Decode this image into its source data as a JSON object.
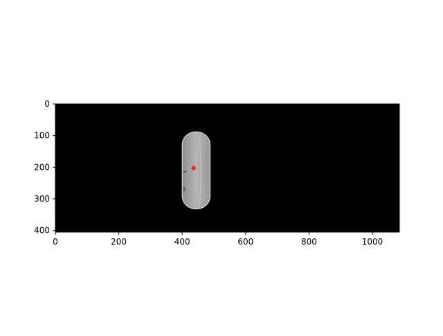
{
  "chart_data": {
    "type": "image",
    "image_extent": {
      "x": [
        0,
        1085
      ],
      "y": [
        405,
        0
      ]
    },
    "xlim": [
      0,
      1085
    ],
    "ylim": [
      405,
      0
    ],
    "y_inverted": true,
    "xticks": [
      0,
      200,
      400,
      600,
      800,
      1000
    ],
    "yticks": [
      0,
      100,
      200,
      300,
      400
    ],
    "xtick_labels": [
      "0",
      "200",
      "400",
      "600",
      "800",
      "1000"
    ],
    "ytick_labels": [
      "0",
      "100",
      "200",
      "300",
      "400"
    ],
    "background_color": "#000000",
    "object": {
      "shape": "rounded-capsule",
      "color": "#a8a8a8",
      "edge_color": "#d6d6d6",
      "x_range": [
        400,
        488
      ],
      "y_range": [
        88,
        332
      ]
    },
    "marker": {
      "x": 436,
      "y": 203,
      "color": "#ff2020"
    },
    "grid": false,
    "title": "",
    "xlabel": "",
    "ylabel": ""
  }
}
